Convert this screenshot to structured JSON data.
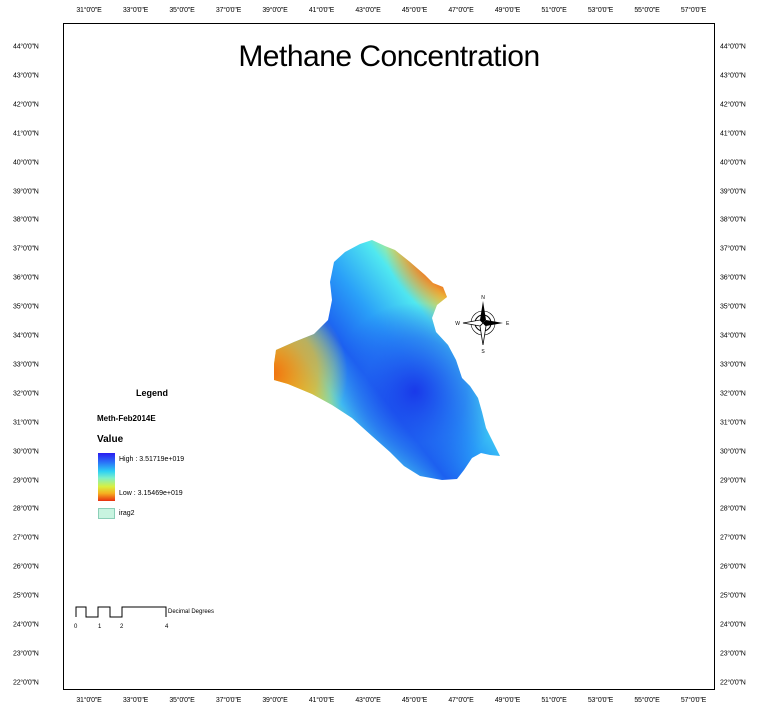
{
  "title": "Methane Concentration",
  "longitude_ticks": [
    "31°0'0\"E",
    "33°0'0\"E",
    "35°0'0\"E",
    "37°0'0\"E",
    "39°0'0\"E",
    "41°0'0\"E",
    "43°0'0\"E",
    "45°0'0\"E",
    "47°0'0\"E",
    "49°0'0\"E",
    "51°0'0\"E",
    "53°0'0\"E",
    "55°0'0\"E",
    "57°0'0\"E"
  ],
  "latitude_ticks": [
    "44°0'0\"N",
    "43°0'0\"N",
    "42°0'0\"N",
    "41°0'0\"N",
    "40°0'0\"N",
    "39°0'0\"N",
    "38°0'0\"N",
    "37°0'0\"N",
    "36°0'0\"N",
    "35°0'0\"N",
    "34°0'0\"N",
    "33°0'0\"N",
    "32°0'0\"N",
    "31°0'0\"N",
    "30°0'0\"N",
    "29°0'0\"N",
    "28°0'0\"N",
    "27°0'0\"N",
    "26°0'0\"N",
    "25°0'0\"N",
    "24°0'0\"N",
    "23°0'0\"N",
    "22°0'0\"N"
  ],
  "legend": {
    "title": "Legend",
    "layer": "Meth-Feb2014E",
    "field": "Value",
    "high": "High : 3.51719e+019",
    "low": "Low : 3.15469e+019",
    "mask": "irag2",
    "ramp_colors": [
      "#2a1cf0",
      "#2dd0f4",
      "#d8f040",
      "#e83010"
    ]
  },
  "scale_bar": {
    "labels": [
      "0",
      "1",
      "2",
      "4"
    ],
    "units": "Decimal Degrees"
  },
  "north_arrow": {
    "N": "N",
    "S": "S",
    "E": "E",
    "W": "W"
  }
}
